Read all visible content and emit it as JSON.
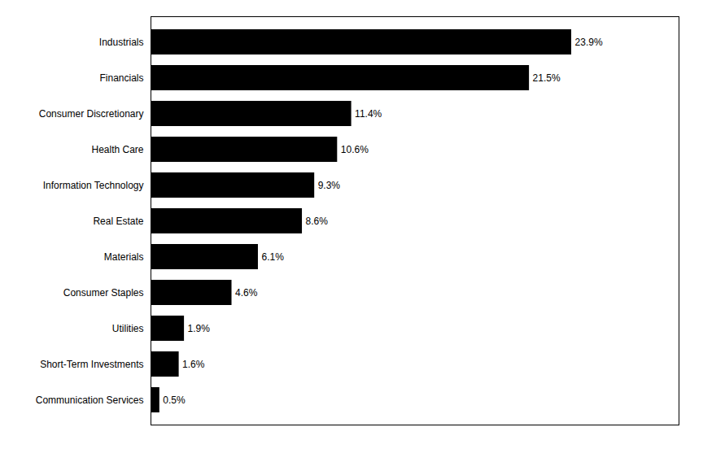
{
  "chart_data": {
    "type": "bar",
    "orientation": "horizontal",
    "categories": [
      "Communication Services",
      "Short-Term Investments",
      "Utilities",
      "Consumer Staples",
      "Materials",
      "Real Estate",
      "Information Technology",
      "Health Care",
      "Consumer Discretionary",
      "Financials",
      "Industrials"
    ],
    "values": [
      0.5,
      1.6,
      1.9,
      4.6,
      6.1,
      8.6,
      9.3,
      10.6,
      11.4,
      21.5,
      23.9
    ],
    "value_labels": [
      "0.5%",
      "1.6%",
      "1.9%",
      "4.6%",
      "6.1%",
      "8.6%",
      "9.3%",
      "10.6%",
      "11.4%",
      "21.5%",
      "23.9%"
    ],
    "data_labels": true,
    "color": "#000000",
    "xlim": [
      0,
      30
    ],
    "tick_labels": "y",
    "grid": false
  }
}
